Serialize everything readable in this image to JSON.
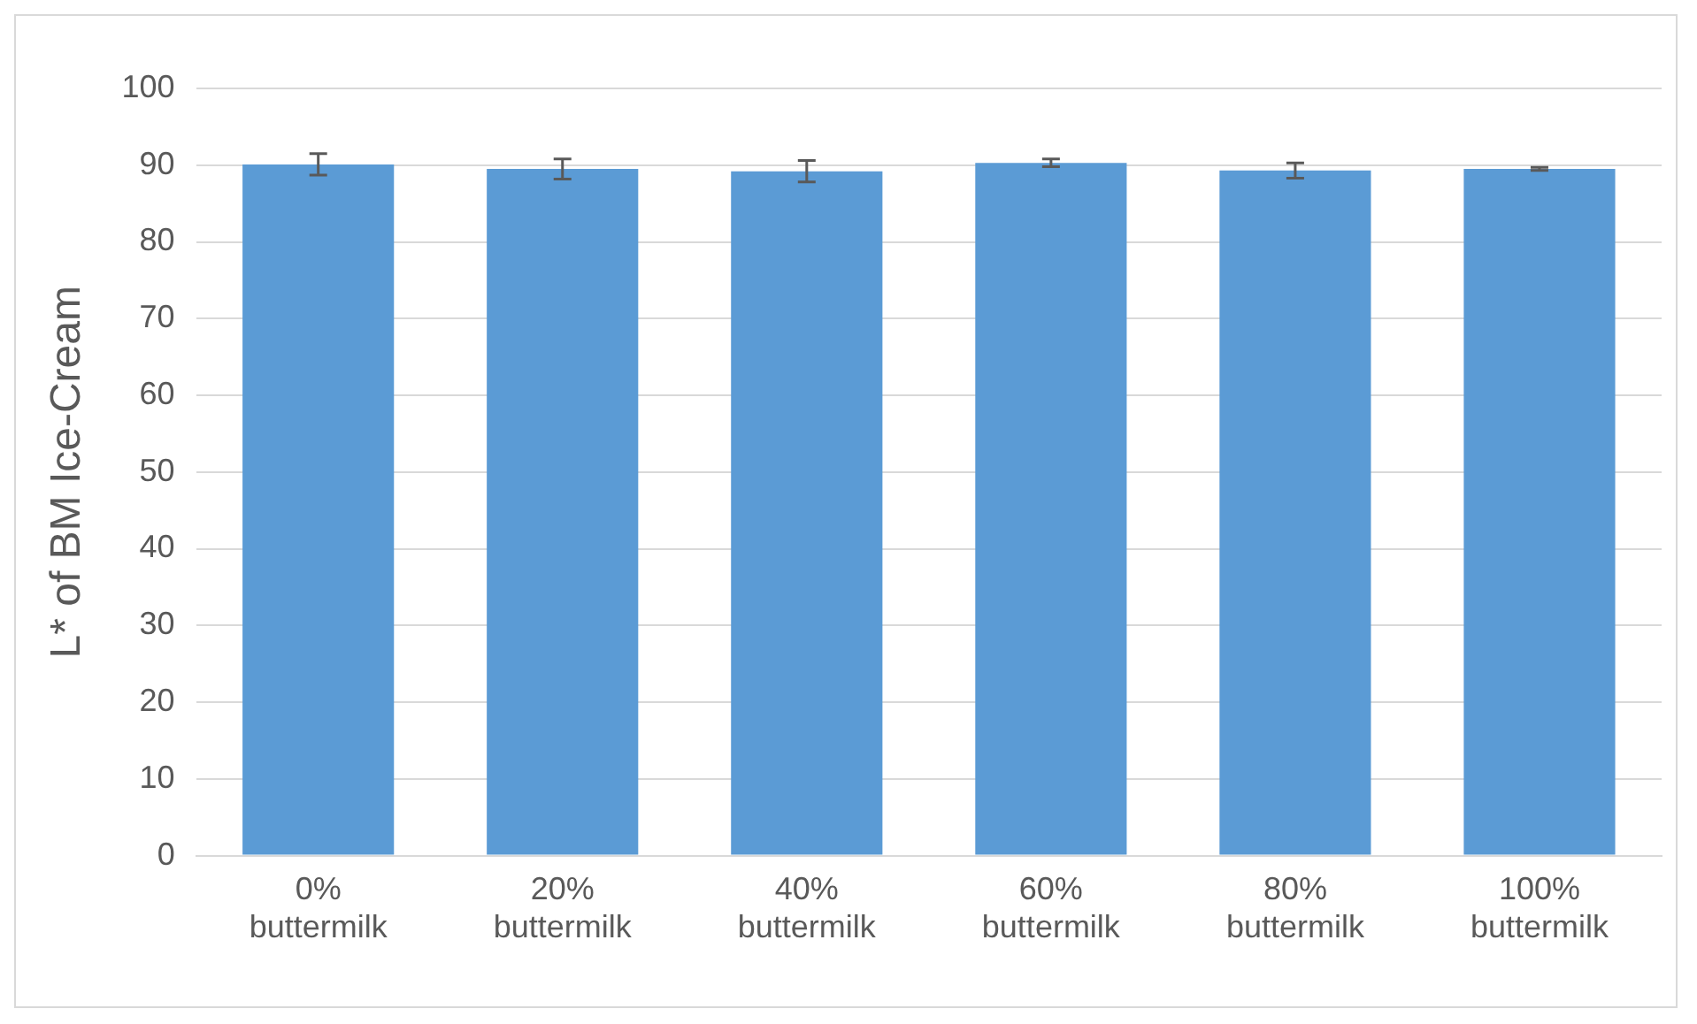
{
  "chart_data": {
    "type": "bar",
    "ylabel": "L* of BM Ice-Cream",
    "categories": [
      "0% buttermilk",
      "20% buttermilk",
      "40% buttermilk",
      "60% buttermilk",
      "80% buttermilk",
      "100% buttermilk"
    ],
    "values": [
      90.1,
      89.5,
      89.2,
      90.3,
      89.3,
      89.5
    ],
    "errors": [
      1.4,
      1.3,
      1.4,
      0.5,
      1.0,
      0.2
    ],
    "color": "#5b9bd5",
    "ylim": [
      0,
      100
    ],
    "yticks": [
      0,
      10,
      20,
      30,
      40,
      50,
      60,
      70,
      80,
      90,
      100
    ],
    "grid": "y"
  }
}
